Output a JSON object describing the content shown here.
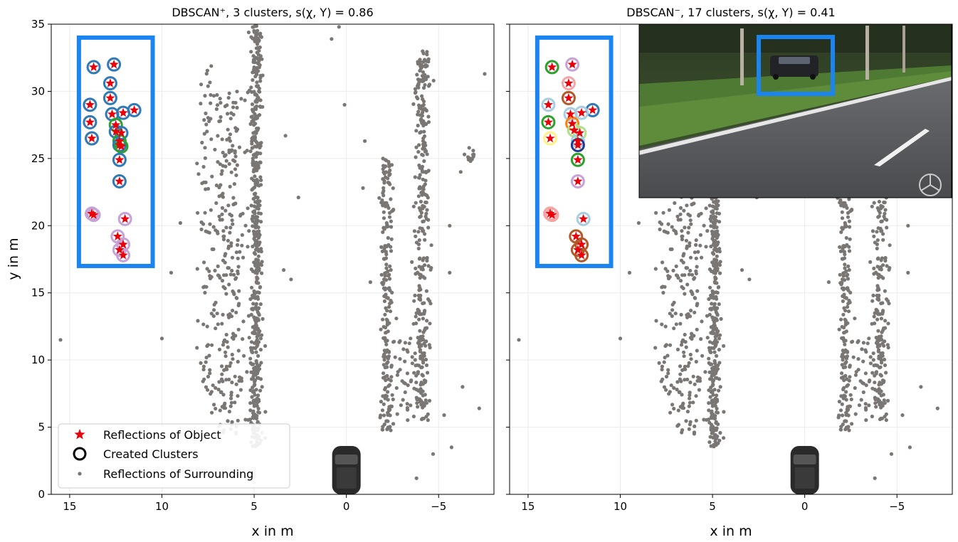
{
  "chart_data": [
    {
      "type": "scatter",
      "title": "DBSCAN⁺, 3 clusters, s(χ, Y) = 0.86",
      "xlabel": "x in m",
      "ylabel": "y in m",
      "xlim": [
        16,
        -8
      ],
      "ylim": [
        0,
        35
      ],
      "xticks": [
        "15",
        "10",
        "5",
        "0",
        "−5"
      ],
      "xtick_values": [
        15,
        10,
        5,
        0,
        -5
      ],
      "yticks": [
        "0",
        "5",
        "10",
        "15",
        "20",
        "25",
        "30",
        "35"
      ],
      "ytick_values": [
        0,
        5,
        10,
        15,
        20,
        25,
        30,
        35
      ],
      "grid": true,
      "legend_position": "lower-left",
      "legend": [
        "Reflections of Object",
        "Created Clusters",
        "Reflections of Surrounding"
      ],
      "object_box": {
        "x": [
          14.5,
          10.5
        ],
        "y": [
          17,
          34
        ],
        "color": "#1a84f0"
      },
      "object_points": [
        {
          "x": 13.7,
          "y": 31.8,
          "c": "#2d7ab8"
        },
        {
          "x": 12.6,
          "y": 32.0,
          "c": "#2d7ab8"
        },
        {
          "x": 12.8,
          "y": 30.6,
          "c": "#2d7ab8"
        },
        {
          "x": 13.9,
          "y": 29.0,
          "c": "#2d7ab8"
        },
        {
          "x": 12.8,
          "y": 29.5,
          "c": "#2d7ab8"
        },
        {
          "x": 11.5,
          "y": 28.6,
          "c": "#2d7ab8"
        },
        {
          "x": 12.1,
          "y": 28.4,
          "c": "#2d7ab8"
        },
        {
          "x": 12.7,
          "y": 28.3,
          "c": "#2d7ab8"
        },
        {
          "x": 13.9,
          "y": 27.7,
          "c": "#2d7ab8"
        },
        {
          "x": 12.5,
          "y": 27.5,
          "c": "#2ca02c"
        },
        {
          "x": 12.5,
          "y": 27.0,
          "c": "#2d7ab8"
        },
        {
          "x": 12.2,
          "y": 26.9,
          "c": "#2d7ab8"
        },
        {
          "x": 13.8,
          "y": 26.5,
          "c": "#2d7ab8"
        },
        {
          "x": 12.3,
          "y": 26.3,
          "c": "#2ca02c"
        },
        {
          "x": 12.3,
          "y": 26.0,
          "c": "#2d7ab8"
        },
        {
          "x": 12.2,
          "y": 25.9,
          "c": "#2ca02c"
        },
        {
          "x": 12.3,
          "y": 24.9,
          "c": "#2d7ab8"
        },
        {
          "x": 12.3,
          "y": 23.3,
          "c": "#2d7ab8"
        },
        {
          "x": 13.8,
          "y": 20.9,
          "c": "#c5a3d6"
        },
        {
          "x": 13.7,
          "y": 20.8,
          "c": "#c5a3d6"
        },
        {
          "x": 12.0,
          "y": 20.5,
          "c": "#c5a3d6"
        },
        {
          "x": 12.4,
          "y": 19.2,
          "c": "#c5a3d6"
        },
        {
          "x": 12.1,
          "y": 18.6,
          "c": "#c5a3d6"
        },
        {
          "x": 12.3,
          "y": 18.2,
          "c": "#c5a3d6"
        },
        {
          "x": 12.1,
          "y": 17.8,
          "c": "#c5a3d6"
        }
      ]
    },
    {
      "type": "scatter",
      "title": "DBSCAN⁻, 17 clusters, s(χ, Y) = 0.41",
      "xlabel": "x in m",
      "xlim": [
        16,
        -8
      ],
      "ylim": [
        0,
        35
      ],
      "xticks": [
        "15",
        "10",
        "5",
        "0",
        "−5"
      ],
      "xtick_values": [
        15,
        10,
        5,
        0,
        -5
      ],
      "grid": true,
      "object_box": {
        "x": [
          14.5,
          10.5
        ],
        "y": [
          17,
          34
        ],
        "color": "#1a84f0"
      },
      "object_points": [
        {
          "x": 13.7,
          "y": 31.8,
          "c": "#2ca02c"
        },
        {
          "x": 12.6,
          "y": 32.0,
          "c": "#c5a3d6"
        },
        {
          "x": 12.8,
          "y": 30.6,
          "c": "#f4a6a6"
        },
        {
          "x": 13.9,
          "y": 29.0,
          "c": "#a6cee3"
        },
        {
          "x": 12.8,
          "y": 29.5,
          "c": "#b15928"
        },
        {
          "x": 11.5,
          "y": 28.6,
          "c": "#2d7ab8"
        },
        {
          "x": 12.1,
          "y": 28.4,
          "c": "#a6cee3"
        },
        {
          "x": 12.7,
          "y": 28.3,
          "c": "#a6cee3"
        },
        {
          "x": 13.9,
          "y": 27.7,
          "c": "#2ca02c"
        },
        {
          "x": 12.6,
          "y": 27.6,
          "c": "#ff7f0e"
        },
        {
          "x": 12.5,
          "y": 27.1,
          "c": "#b2df8a"
        },
        {
          "x": 12.2,
          "y": 26.9,
          "c": "#b2df8a"
        },
        {
          "x": 13.8,
          "y": 26.5,
          "c": "#fff28a"
        },
        {
          "x": 12.3,
          "y": 26.3,
          "c": "#a6cee3"
        },
        {
          "x": 12.3,
          "y": 26.0,
          "c": "#1f3a93"
        },
        {
          "x": 12.3,
          "y": 24.9,
          "c": "#2ca02c"
        },
        {
          "x": 12.3,
          "y": 23.3,
          "c": "#c5a3d6"
        },
        {
          "x": 13.8,
          "y": 20.9,
          "c": "#f4a6a6"
        },
        {
          "x": 13.7,
          "y": 20.8,
          "c": "#f4a6a6"
        },
        {
          "x": 12.0,
          "y": 20.5,
          "c": "#a6cee3"
        },
        {
          "x": 12.4,
          "y": 19.2,
          "c": "#b15928"
        },
        {
          "x": 12.1,
          "y": 18.6,
          "c": "#b15928"
        },
        {
          "x": 12.3,
          "y": 18.2,
          "c": "#b15928"
        },
        {
          "x": 12.1,
          "y": 17.8,
          "c": "#b15928"
        }
      ]
    }
  ],
  "colors": {
    "object_star": "#e8000b",
    "surrounding": "#7a7674",
    "box": "#1a84f0",
    "grid": "#ebebeb"
  },
  "surrounding_bands": [
    {
      "x": 4.9,
      "spread": 0.25,
      "y": [
        3.5,
        35
      ],
      "n": 520
    },
    {
      "x": 6.3,
      "spread": 0.9,
      "y": [
        4.5,
        30
      ],
      "n": 260
    },
    {
      "x": 7.6,
      "spread": 0.5,
      "y": [
        7.0,
        32
      ],
      "n": 70
    },
    {
      "x": -2.2,
      "spread": 0.3,
      "y": [
        4.7,
        25
      ],
      "n": 210
    },
    {
      "x": -4.1,
      "spread": 0.35,
      "y": [
        5.5,
        33
      ],
      "n": 320
    },
    {
      "x": -3.3,
      "spread": 0.6,
      "y": [
        5.5,
        12
      ],
      "n": 40
    },
    {
      "x": -6.7,
      "spread": 0.2,
      "y": [
        24.8,
        25.8
      ],
      "n": 12
    }
  ],
  "surrounding_scatter": [
    [
      15.5,
      11.5
    ],
    [
      10.0,
      11.6
    ],
    [
      9.5,
      16.5
    ],
    [
      9.0,
      20.2
    ],
    [
      3.4,
      16.7
    ],
    [
      3.0,
      16.0
    ],
    [
      2.6,
      22.1
    ],
    [
      3.3,
      26.7
    ],
    [
      0.1,
      29.0
    ],
    [
      -1.0,
      26.3
    ],
    [
      -0.9,
      22.8
    ],
    [
      -1.3,
      15.8
    ],
    [
      -5.6,
      20.0
    ],
    [
      -5.6,
      16.5
    ],
    [
      -6.2,
      24.0
    ],
    [
      -6.3,
      8.0
    ],
    [
      -7.2,
      6.4
    ],
    [
      -5.3,
      5.9
    ],
    [
      -5.7,
      3.5
    ],
    [
      -4.7,
      3.0
    ],
    [
      -3.8,
      1.2
    ],
    [
      0.4,
      34.8
    ],
    [
      0.8,
      33.9
    ],
    [
      -7.5,
      31.3
    ],
    [
      -6.3,
      35.0
    ],
    [
      -2.1,
      34.9
    ],
    [
      4.7,
      3.8
    ],
    [
      4.4,
      4.2
    ]
  ],
  "car_icon": "car-icon",
  "inset_photo": "road-camera-photo"
}
